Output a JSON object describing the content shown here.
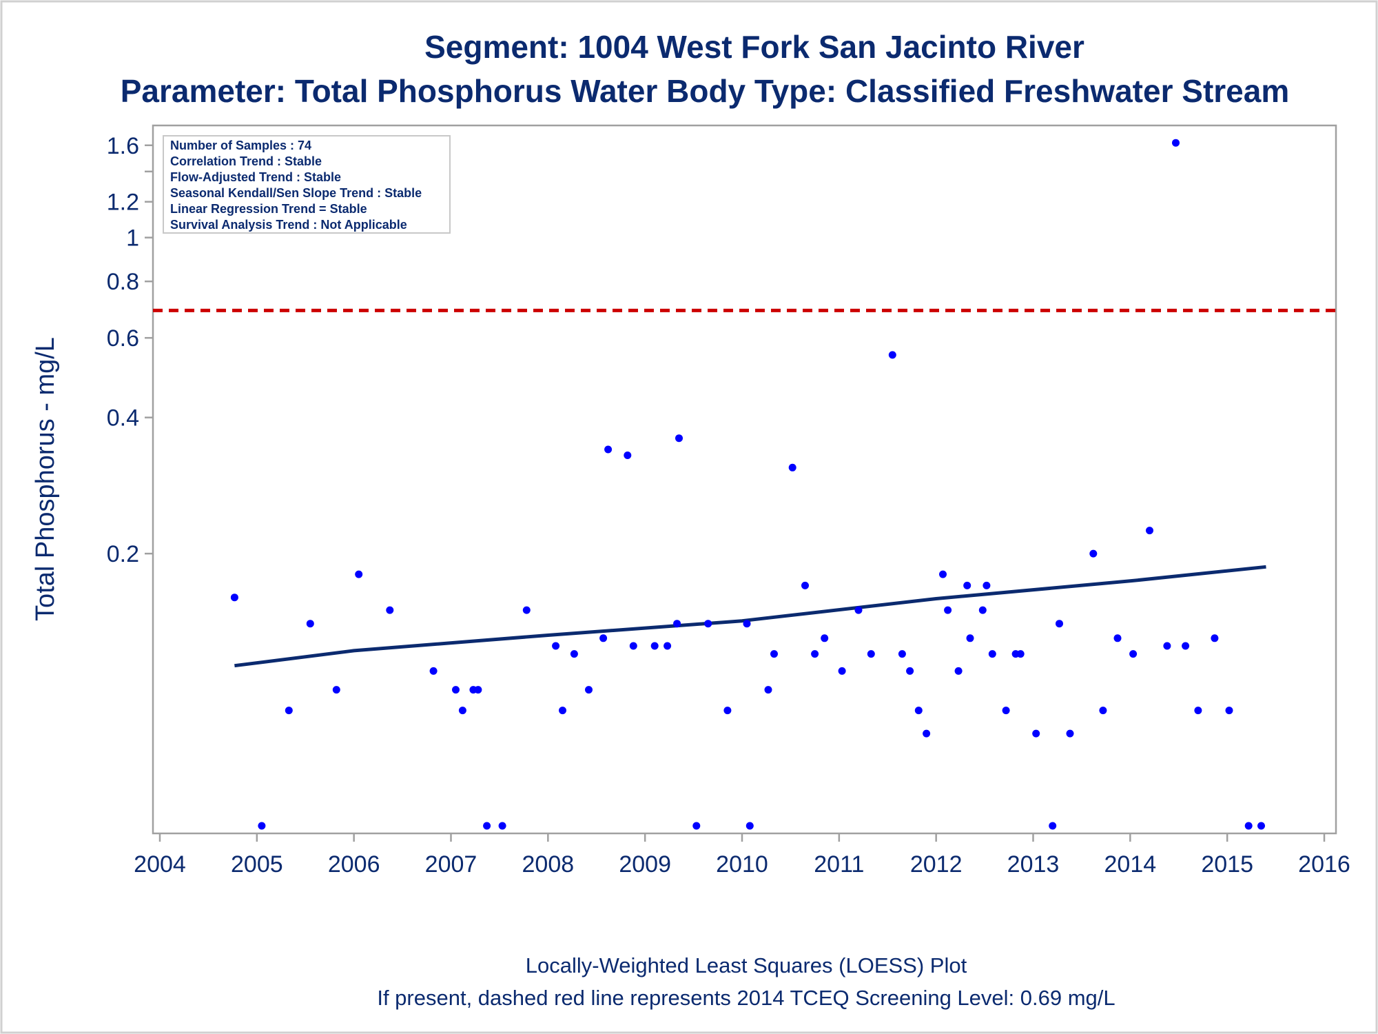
{
  "colors": {
    "text": "#0b2a6f",
    "point": "#0000ff",
    "trend": "#0b2a6f",
    "screening": "#cc0000",
    "frame": "#a0a0a0"
  },
  "title": {
    "line1": "Segment: 1004  West Fork San Jacinto River",
    "line2": "Parameter: Total Phosphorus   Water Body Type: Classified Freshwater Stream"
  },
  "stats_box": [
    "Number of Samples : 74",
    "Correlation Trend : Stable",
    "Flow-Adjusted Trend : Stable",
    "Seasonal Kendall/Sen Slope Trend : Stable",
    "Linear Regression Trend = Stable",
    "Survival Analysis Trend : Not Applicable"
  ],
  "footer": {
    "line1": "Locally-Weighted Least Squares (LOESS) Plot",
    "line2": "If present, dashed red line represents 2014 TCEQ Screening Level: 0.69 mg/L"
  },
  "chart_data": {
    "type": "scatter",
    "title": "Segment: 1004  West Fork San Jacinto River",
    "subtitle": "Parameter: Total Phosphorus   Water Body Type: Classified Freshwater Stream",
    "xlabel": "",
    "ylabel": "Total Phosphorus - mg/L",
    "x_ticks": [
      "2004",
      "2005",
      "2006",
      "2007",
      "2008",
      "2009",
      "2010",
      "2011",
      "2012",
      "2013",
      "2014",
      "2015",
      "2016"
    ],
    "y_ticks": [
      "0.2",
      "0.4",
      "0.6",
      "0.8",
      "1",
      "1.2",
      "1.6"
    ],
    "y_scale": "log",
    "xlim": [
      2004,
      2016
    ],
    "ylim": [
      0.05,
      1.65
    ],
    "grid": false,
    "screening_level": 0.69,
    "points": [
      {
        "x": 2004.77,
        "y": 0.16
      },
      {
        "x": 2005.05,
        "y": 0.05
      },
      {
        "x": 2005.33,
        "y": 0.09
      },
      {
        "x": 2005.55,
        "y": 0.14
      },
      {
        "x": 2005.82,
        "y": 0.1
      },
      {
        "x": 2006.05,
        "y": 0.18
      },
      {
        "x": 2006.37,
        "y": 0.15
      },
      {
        "x": 2006.82,
        "y": 0.11
      },
      {
        "x": 2007.05,
        "y": 0.1
      },
      {
        "x": 2007.12,
        "y": 0.09
      },
      {
        "x": 2007.23,
        "y": 0.1
      },
      {
        "x": 2007.28,
        "y": 0.1
      },
      {
        "x": 2007.37,
        "y": 0.05
      },
      {
        "x": 2007.53,
        "y": 0.05
      },
      {
        "x": 2007.78,
        "y": 0.15
      },
      {
        "x": 2008.08,
        "y": 0.125
      },
      {
        "x": 2008.15,
        "y": 0.09
      },
      {
        "x": 2008.27,
        "y": 0.12
      },
      {
        "x": 2008.42,
        "y": 0.1
      },
      {
        "x": 2008.57,
        "y": 0.13
      },
      {
        "x": 2008.62,
        "y": 0.34
      },
      {
        "x": 2008.82,
        "y": 0.33
      },
      {
        "x": 2008.88,
        "y": 0.125
      },
      {
        "x": 2009.1,
        "y": 0.125
      },
      {
        "x": 2009.23,
        "y": 0.125
      },
      {
        "x": 2009.33,
        "y": 0.14
      },
      {
        "x": 2009.35,
        "y": 0.36
      },
      {
        "x": 2009.53,
        "y": 0.05
      },
      {
        "x": 2009.65,
        "y": 0.14
      },
      {
        "x": 2009.85,
        "y": 0.09
      },
      {
        "x": 2010.05,
        "y": 0.14
      },
      {
        "x": 2010.08,
        "y": 0.05
      },
      {
        "x": 2010.27,
        "y": 0.1
      },
      {
        "x": 2010.33,
        "y": 0.12
      },
      {
        "x": 2010.52,
        "y": 0.31
      },
      {
        "x": 2010.65,
        "y": 0.17
      },
      {
        "x": 2010.75,
        "y": 0.12
      },
      {
        "x": 2010.85,
        "y": 0.13
      },
      {
        "x": 2011.03,
        "y": 0.11
      },
      {
        "x": 2011.2,
        "y": 0.15
      },
      {
        "x": 2011.33,
        "y": 0.12
      },
      {
        "x": 2011.55,
        "y": 0.55
      },
      {
        "x": 2011.65,
        "y": 0.12
      },
      {
        "x": 2011.73,
        "y": 0.11
      },
      {
        "x": 2011.82,
        "y": 0.09
      },
      {
        "x": 2011.9,
        "y": 0.08
      },
      {
        "x": 2012.07,
        "y": 0.18
      },
      {
        "x": 2012.12,
        "y": 0.15
      },
      {
        "x": 2012.23,
        "y": 0.11
      },
      {
        "x": 2012.32,
        "y": 0.17
      },
      {
        "x": 2012.35,
        "y": 0.13
      },
      {
        "x": 2012.48,
        "y": 0.15
      },
      {
        "x": 2012.52,
        "y": 0.17
      },
      {
        "x": 2012.58,
        "y": 0.12
      },
      {
        "x": 2012.72,
        "y": 0.09
      },
      {
        "x": 2012.82,
        "y": 0.12
      },
      {
        "x": 2012.87,
        "y": 0.12
      },
      {
        "x": 2013.03,
        "y": 0.08
      },
      {
        "x": 2013.2,
        "y": 0.05
      },
      {
        "x": 2013.27,
        "y": 0.14
      },
      {
        "x": 2013.38,
        "y": 0.08
      },
      {
        "x": 2013.62,
        "y": 0.2
      },
      {
        "x": 2013.72,
        "y": 0.09
      },
      {
        "x": 2013.87,
        "y": 0.13
      },
      {
        "x": 2014.03,
        "y": 0.12
      },
      {
        "x": 2014.2,
        "y": 0.225
      },
      {
        "x": 2014.38,
        "y": 0.125
      },
      {
        "x": 2014.47,
        "y": 1.62
      },
      {
        "x": 2014.57,
        "y": 0.125
      },
      {
        "x": 2014.7,
        "y": 0.09
      },
      {
        "x": 2014.87,
        "y": 0.13
      },
      {
        "x": 2015.02,
        "y": 0.09
      },
      {
        "x": 2015.22,
        "y": 0.05
      },
      {
        "x": 2015.35,
        "y": 0.05
      }
    ],
    "trend": [
      {
        "x": 2004.77,
        "y": 0.113
      },
      {
        "x": 2006.0,
        "y": 0.122
      },
      {
        "x": 2008.0,
        "y": 0.132
      },
      {
        "x": 2010.0,
        "y": 0.142
      },
      {
        "x": 2012.0,
        "y": 0.159
      },
      {
        "x": 2014.0,
        "y": 0.174
      },
      {
        "x": 2015.4,
        "y": 0.187
      }
    ]
  }
}
